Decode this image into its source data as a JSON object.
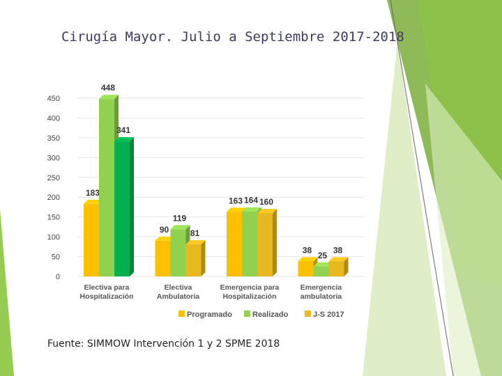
{
  "slide": {
    "title": "Cirugía Mayor. Julio a Septiembre 2017-2018",
    "source": "Fuente: SIMMOW Intervención 1 y 2  SPME 2018"
  },
  "colors": {
    "programado": "#FFC000",
    "realizado": "#92D050",
    "js2017": "#E8B820",
    "highlight_realizado": "#00B050",
    "decor_green": "#6AB42C",
    "decor_light": "#C6E09A"
  },
  "chart_data": {
    "type": "bar",
    "title": "Cirugía Mayor. Julio a Septiembre 2017-2018",
    "categories": [
      [
        "Electiva para",
        "Hospitalización"
      ],
      [
        "Electiva",
        "Ambulatoria"
      ],
      [
        "Emergencia para",
        "Hospitalización"
      ],
      [
        "Emergencia",
        "ambulatoria"
      ]
    ],
    "series": [
      {
        "name": "Programado",
        "values": [
          183,
          90,
          163,
          38
        ],
        "labels": [
          "183",
          "90",
          "163",
          "38"
        ]
      },
      {
        "name": "Realizado",
        "values": [
          448,
          119,
          164,
          25
        ],
        "labels": [
          "448",
          "119",
          "164",
          "25"
        ]
      },
      {
        "name": "J-S 2017",
        "values": [
          341,
          81,
          160,
          38
        ],
        "labels": [
          "341",
          "81",
          "160",
          "38"
        ]
      }
    ],
    "ylim": [
      0,
      450
    ],
    "yticks": [
      0,
      50,
      100,
      150,
      200,
      250,
      300,
      350,
      400,
      450
    ],
    "ytick_labels": [
      "0",
      "50",
      "100",
      "150",
      "200",
      "250",
      "300",
      "350",
      "400",
      "450"
    ],
    "legend_position": "bottom",
    "grid": true,
    "xlabel": "",
    "ylabel": ""
  }
}
